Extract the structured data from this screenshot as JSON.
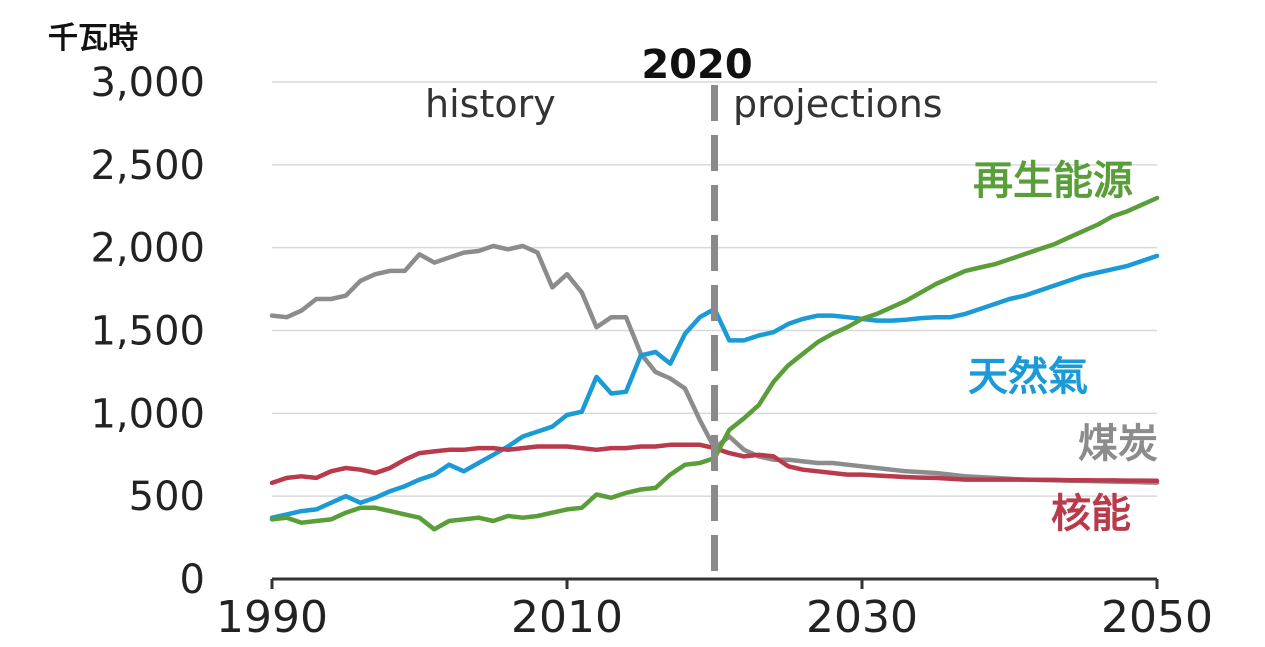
{
  "chart_data": {
    "type": "line",
    "unit_label": "千瓦時",
    "marker": {
      "x": 2020,
      "label": "2020"
    },
    "periods": {
      "left": "history",
      "right": "projections"
    },
    "x_ticks": [
      1990,
      2010,
      2030,
      2050
    ],
    "y_ticks": [
      "0",
      "500",
      "1,000",
      "1,500",
      "2,000",
      "2,500",
      "3,000"
    ],
    "xlim": [
      1990,
      2050
    ],
    "ylim": [
      0,
      3000
    ],
    "grid": "horizontal",
    "x": [
      1990,
      1991,
      1992,
      1993,
      1994,
      1995,
      1996,
      1997,
      1998,
      1999,
      2000,
      2001,
      2002,
      2003,
      2004,
      2005,
      2006,
      2007,
      2008,
      2009,
      2010,
      2011,
      2012,
      2013,
      2014,
      2015,
      2016,
      2017,
      2018,
      2019,
      2020,
      2021,
      2022,
      2023,
      2024,
      2025,
      2026,
      2027,
      2028,
      2029,
      2030,
      2031,
      2032,
      2033,
      2034,
      2035,
      2036,
      2037,
      2038,
      2039,
      2040,
      2041,
      2042,
      2043,
      2044,
      2045,
      2046,
      2047,
      2048,
      2049,
      2050
    ],
    "series": [
      {
        "name": "煤炭",
        "color": "#8c8c8c",
        "values": [
          1590,
          1580,
          1620,
          1690,
          1690,
          1710,
          1800,
          1840,
          1860,
          1860,
          1960,
          1910,
          1940,
          1970,
          1980,
          2010,
          1990,
          2010,
          1970,
          1760,
          1840,
          1730,
          1520,
          1580,
          1580,
          1360,
          1250,
          1210,
          1150,
          960,
          790,
          860,
          780,
          740,
          720,
          720,
          710,
          700,
          700,
          690,
          680,
          670,
          660,
          650,
          645,
          640,
          630,
          620,
          615,
          610,
          605,
          600,
          598,
          596,
          594,
          592,
          590,
          588,
          586,
          584,
          582
        ]
      },
      {
        "name": "天然氣",
        "color": "#1a9ad6",
        "values": [
          370,
          390,
          410,
          420,
          460,
          500,
          460,
          490,
          530,
          560,
          600,
          630,
          690,
          650,
          700,
          750,
          800,
          860,
          890,
          920,
          990,
          1010,
          1220,
          1120,
          1130,
          1350,
          1370,
          1300,
          1480,
          1580,
          1630,
          1440,
          1440,
          1470,
          1490,
          1540,
          1570,
          1590,
          1590,
          1580,
          1570,
          1560,
          1560,
          1565,
          1575,
          1580,
          1580,
          1600,
          1630,
          1660,
          1690,
          1710,
          1740,
          1770,
          1800,
          1830,
          1850,
          1870,
          1890,
          1920,
          1950
        ]
      },
      {
        "name": "核能",
        "color": "#b83a4b",
        "values": [
          580,
          610,
          620,
          610,
          650,
          670,
          660,
          640,
          670,
          720,
          760,
          770,
          780,
          780,
          790,
          790,
          780,
          790,
          800,
          800,
          800,
          790,
          780,
          790,
          790,
          800,
          800,
          810,
          810,
          810,
          790,
          760,
          740,
          750,
          740,
          680,
          660,
          650,
          640,
          630,
          630,
          625,
          620,
          615,
          612,
          610,
          605,
          600,
          600,
          600,
          600,
          600,
          598,
          598,
          596,
          596,
          595,
          595,
          594,
          594,
          593
        ]
      },
      {
        "name": "再生能源",
        "color": "#5a9e3a",
        "values": [
          360,
          370,
          340,
          350,
          360,
          400,
          430,
          430,
          410,
          390,
          370,
          300,
          350,
          360,
          370,
          350,
          380,
          370,
          380,
          400,
          420,
          430,
          510,
          490,
          520,
          540,
          550,
          630,
          690,
          700,
          730,
          900,
          970,
          1050,
          1190,
          1290,
          1360,
          1430,
          1480,
          1520,
          1570,
          1600,
          1640,
          1680,
          1730,
          1780,
          1820,
          1860,
          1880,
          1900,
          1930,
          1960,
          1990,
          2020,
          2060,
          2100,
          2140,
          2190,
          2220,
          2260,
          2300
        ]
      }
    ]
  }
}
